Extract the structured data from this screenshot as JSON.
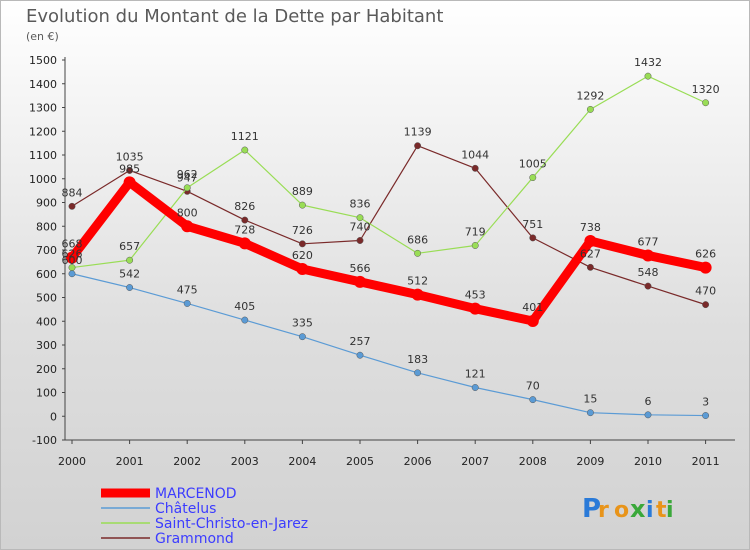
{
  "chart_data": {
    "type": "line",
    "title": "Evolution du Montant de la Dette par Habitant",
    "subtitle": "(en €)",
    "xlabel": "",
    "ylabel": "",
    "x": [
      "2000",
      "2001",
      "2002",
      "2003",
      "2004",
      "2005",
      "2006",
      "2007",
      "2008",
      "2009",
      "2010",
      "2011"
    ],
    "ylim": [
      -100,
      1500
    ],
    "yticks": [
      -100,
      0,
      100,
      200,
      300,
      400,
      500,
      600,
      700,
      800,
      900,
      1000,
      1100,
      1200,
      1300,
      1400,
      1500
    ],
    "grid": false,
    "legend": "bottom-left",
    "series": [
      {
        "name": "MARCENOD",
        "color": "#ff0000",
        "values": [
          668,
          985,
          800,
          728,
          620,
          566,
          512,
          453,
          401,
          738,
          677,
          626
        ]
      },
      {
        "name": "Châtelus",
        "color": "#5b9bd5",
        "values": [
          600,
          542,
          475,
          405,
          335,
          257,
          183,
          121,
          70,
          15,
          6,
          3
        ]
      },
      {
        "name": "Saint-Christo-en-Jarez",
        "color": "#99dd55",
        "values": [
          626,
          657,
          962,
          1121,
          889,
          836,
          686,
          719,
          1005,
          1292,
          1432,
          1320
        ]
      },
      {
        "name": "Grammond",
        "color": "#7a2a2a",
        "values": [
          884,
          1035,
          947,
          826,
          726,
          740,
          1139,
          1044,
          751,
          627,
          548,
          470
        ]
      }
    ]
  },
  "logo": {
    "letters": [
      "P",
      "r",
      "o",
      "x",
      "i",
      "t",
      "i"
    ]
  }
}
